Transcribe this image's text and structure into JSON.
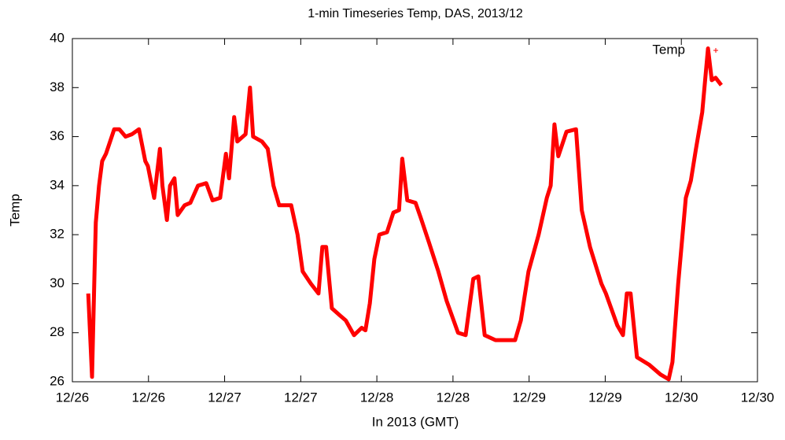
{
  "chart_data": {
    "type": "line",
    "title": "1-min Timeseries Temp, DAS, 2013/12",
    "x_label": "In 2013 (GMT)",
    "y_label": "Temp",
    "xlim": [
      0,
      108
    ],
    "xticks": [
      {
        "value": 0,
        "label": "12/26"
      },
      {
        "value": 12,
        "label": "12/26"
      },
      {
        "value": 24,
        "label": "12/27"
      },
      {
        "value": 36,
        "label": "12/27"
      },
      {
        "value": 48,
        "label": "12/28"
      },
      {
        "value": 60,
        "label": "12/28"
      },
      {
        "value": 72,
        "label": "12/29"
      },
      {
        "value": 84,
        "label": "12/29"
      },
      {
        "value": 96,
        "label": "12/30"
      },
      {
        "value": 108,
        "label": "12/30"
      }
    ],
    "ylim": [
      26,
      40
    ],
    "yticks": [
      26,
      28,
      30,
      32,
      34,
      36,
      38,
      40
    ],
    "legend": "top right",
    "series": [
      {
        "name": "Temp",
        "color": "#ff0000",
        "x": [
          2.5,
          3.1,
          3.5,
          3.7,
          4.2,
          4.7,
          5.3,
          6.6,
          7.4,
          8.4,
          9.4,
          10.5,
          11.5,
          11.9,
          12.9,
          13.8,
          14.2,
          14.9,
          15.4,
          16.1,
          16.6,
          17.7,
          18.6,
          19.8,
          21.1,
          22.1,
          23.3,
          24.2,
          24.7,
          25.5,
          26,
          27.3,
          28,
          28.5,
          29.9,
          30.8,
          31.7,
          32.6,
          34.5,
          35.5,
          36.3,
          37.6,
          38.8,
          39.4,
          40,
          40.9,
          42.2,
          43.1,
          44.4,
          45.6,
          46.2,
          46.9,
          47.6,
          48.4,
          49.6,
          50.6,
          51.5,
          52,
          52.8,
          54.1,
          54.9,
          56.2,
          57.7,
          59,
          60.8,
          62,
          63.2,
          64,
          65,
          66.7,
          69.8,
          70.7,
          71.9,
          73.5,
          74.8,
          75.4,
          76,
          76.6,
          77.9,
          79.4,
          80.3,
          81.6,
          83.4,
          84.1,
          85.9,
          86.8,
          87.4,
          88,
          89,
          90.9,
          92.7,
          94,
          94.6,
          95.5,
          96.7,
          97.5,
          98.3,
          99.3,
          100.2,
          100.8,
          101.4,
          102.3
        ],
        "values": [
          29.6,
          26.2,
          30.5,
          32.5,
          34,
          35,
          35.3,
          36.3,
          36.3,
          36,
          36.1,
          36.3,
          35,
          34.8,
          33.5,
          35.5,
          34,
          32.6,
          34,
          34.3,
          32.8,
          33.2,
          33.3,
          34,
          34.1,
          33.4,
          33.5,
          35.3,
          34.3,
          36.8,
          35.8,
          36.1,
          38,
          36,
          35.8,
          35.5,
          34,
          33.2,
          33.2,
          32,
          30.5,
          30,
          29.6,
          31.5,
          31.5,
          29,
          28.7,
          28.5,
          27.9,
          28.2,
          28.1,
          29.2,
          31,
          32,
          32.1,
          32.9,
          33,
          35.1,
          33.4,
          33.3,
          32.7,
          31.7,
          30.5,
          29.3,
          28,
          27.9,
          30.2,
          30.3,
          27.9,
          27.7,
          27.7,
          28.5,
          30.5,
          32,
          33.5,
          34,
          36.5,
          35.2,
          36.2,
          36.3,
          33,
          31.5,
          30,
          29.6,
          28.3,
          27.9,
          29.6,
          29.6,
          27,
          26.7,
          26.3,
          26.1,
          26.8,
          30,
          33.5,
          34.2,
          35.5,
          37,
          39.6,
          38.3,
          38.4,
          38.1
        ]
      }
    ]
  }
}
